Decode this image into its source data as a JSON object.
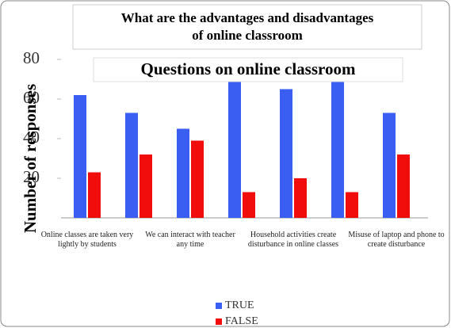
{
  "chart_data": {
    "type": "bar",
    "header": "What are the advantages and disadvantages of online classroom",
    "title": "Questions on online classroom",
    "ylabel": "Number of responses",
    "categories": [
      "Online classes are taken very lightly by students",
      null,
      "We can interact with teacher any time",
      null,
      "Household activities create disturbance  in online classes",
      null,
      "Misuse of laptop and phone to create disturbance"
    ],
    "series": [
      {
        "name": "TRUE",
        "color": "#3b5ef2",
        "values": [
          62,
          53,
          45,
          71,
          65,
          71,
          53
        ]
      },
      {
        "name": "FALSE",
        "color": "#f20d0d",
        "values": [
          23,
          32,
          39,
          13,
          20,
          13,
          32
        ]
      }
    ],
    "ylim": [
      0,
      80
    ],
    "yticks": [
      20,
      40,
      60,
      80
    ],
    "legend": "bottom"
  }
}
